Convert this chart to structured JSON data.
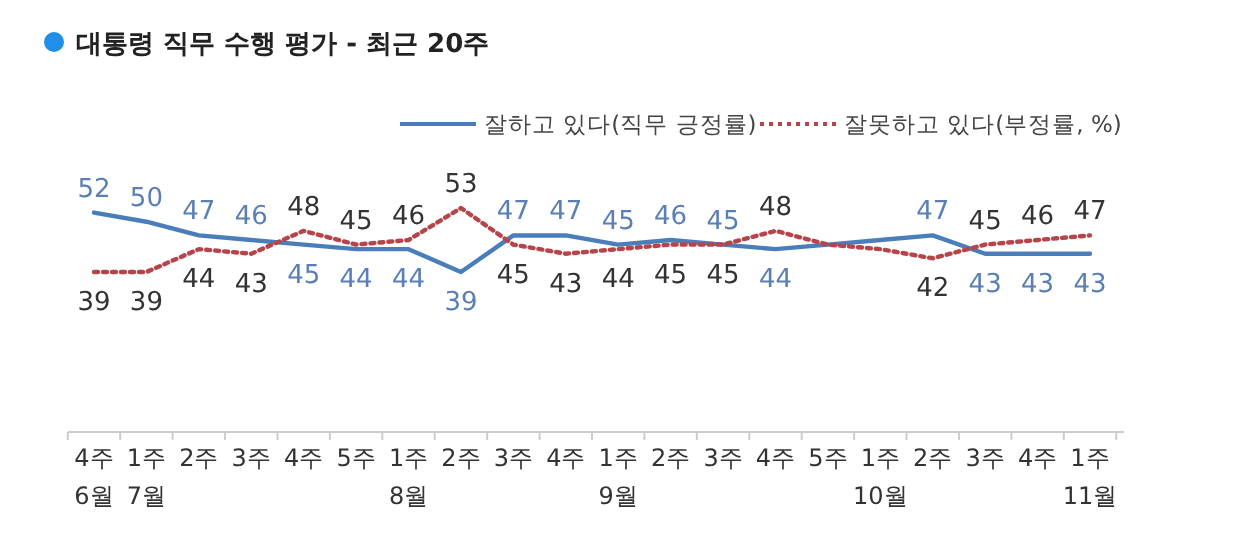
{
  "chart_data": {
    "type": "line",
    "title": "대통령 직무 수행 평가 - 최근 20주",
    "categories": [
      "4주\n6월",
      "1주\n7월",
      "2주",
      "3주",
      "4주",
      "5주",
      "1주\n8월",
      "2주",
      "3주",
      "4주",
      "1주\n9월",
      "2주",
      "3주",
      "4주",
      "5주",
      "1주\n10월",
      "2주",
      "3주",
      "4주",
      "1주\n11월"
    ],
    "series": [
      {
        "name": "잘하고 있다(직무 긍정률)",
        "color": "#4a7ebb",
        "line_style": "solid",
        "values": [
          52,
          50,
          47,
          46,
          45,
          44,
          44,
          39,
          47,
          47,
          45,
          46,
          45,
          44,
          45,
          46,
          47,
          43,
          43,
          43
        ],
        "value_labels": [
          "52",
          "50",
          "47",
          "46",
          "45",
          "44",
          "44",
          "39",
          "47",
          "47",
          "45",
          "46",
          "45",
          "44",
          null,
          null,
          "47",
          "43",
          "43",
          "43"
        ]
      },
      {
        "name": "잘못하고 있다(부정률, %)",
        "color": "#b5454a",
        "line_style": "dotted",
        "values": [
          39,
          39,
          44,
          43,
          48,
          45,
          46,
          53,
          45,
          43,
          44,
          45,
          45,
          48,
          45,
          44,
          42,
          45,
          46,
          47
        ],
        "value_labels": [
          "39",
          "39",
          "44",
          "43",
          "48",
          "45",
          "46",
          "53",
          "45",
          "43",
          "44",
          "45",
          "45",
          "48",
          null,
          null,
          "42",
          "45",
          "46",
          "47"
        ]
      }
    ],
    "tick_labels": "x",
    "legend": "top right",
    "marker": "none"
  }
}
